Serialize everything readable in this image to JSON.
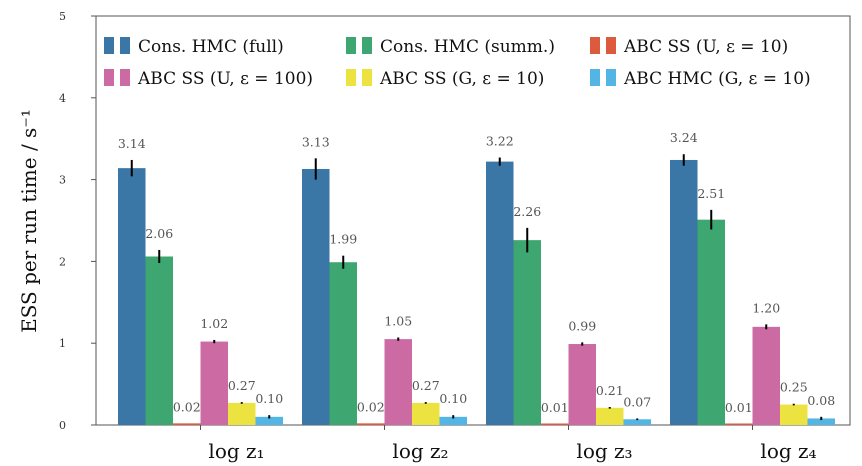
{
  "chart_data": {
    "type": "bar",
    "categories": [
      "log z₁",
      "log z₂",
      "log z₃",
      "log z₄"
    ],
    "ylabel": "ESS per run time / s⁻¹",
    "xlabel": "",
    "ylim": [
      0,
      5
    ],
    "yticks": [
      "0",
      "1",
      "2",
      "3",
      "4",
      "5"
    ],
    "grid": false,
    "legend_position": "top",
    "series": [
      {
        "name": "Cons. HMC (full)",
        "color": "#3a76a6",
        "values": [
          3.14,
          3.13,
          3.22,
          3.24
        ],
        "labels": [
          "3.14",
          "3.13",
          "3.22",
          "3.24"
        ],
        "errors": [
          0.1,
          0.13,
          0.05,
          0.07
        ]
      },
      {
        "name": "Cons. HMC (summ.)",
        "color": "#3ea771",
        "values": [
          2.06,
          1.99,
          2.26,
          2.51
        ],
        "labels": [
          "2.06",
          "1.99",
          "2.26",
          "2.51"
        ],
        "errors": [
          0.08,
          0.08,
          0.15,
          0.12
        ]
      },
      {
        "name": "ABC SS (U, ε = 10)",
        "color": "#dc5a3d",
        "values": [
          0.02,
          0.02,
          0.01,
          0.01
        ],
        "labels": [
          "0.02",
          "0.02",
          "0.01",
          "0.01"
        ],
        "errors": [
          0.0,
          0.0,
          0.0,
          0.0
        ]
      },
      {
        "name": "ABC SS (U, ε = 100)",
        "color": "#cc6ba3",
        "values": [
          1.02,
          1.05,
          0.99,
          1.2
        ],
        "labels": [
          "1.02",
          "1.05",
          "0.99",
          "1.20"
        ],
        "errors": [
          0.02,
          0.02,
          0.02,
          0.03
        ]
      },
      {
        "name": "ABC SS (G, ε = 10)",
        "color": "#ece340",
        "values": [
          0.27,
          0.27,
          0.21,
          0.25
        ],
        "labels": [
          "0.27",
          "0.27",
          "0.21",
          "0.25"
        ],
        "errors": [
          0.01,
          0.01,
          0.01,
          0.01
        ]
      },
      {
        "name": "ABC HMC (G, ε = 10)",
        "color": "#53b5e4",
        "values": [
          0.1,
          0.1,
          0.07,
          0.08
        ],
        "labels": [
          "0.10",
          "0.10",
          "0.07",
          "0.08"
        ],
        "errors": [
          0.02,
          0.02,
          0.01,
          0.02
        ]
      }
    ]
  }
}
